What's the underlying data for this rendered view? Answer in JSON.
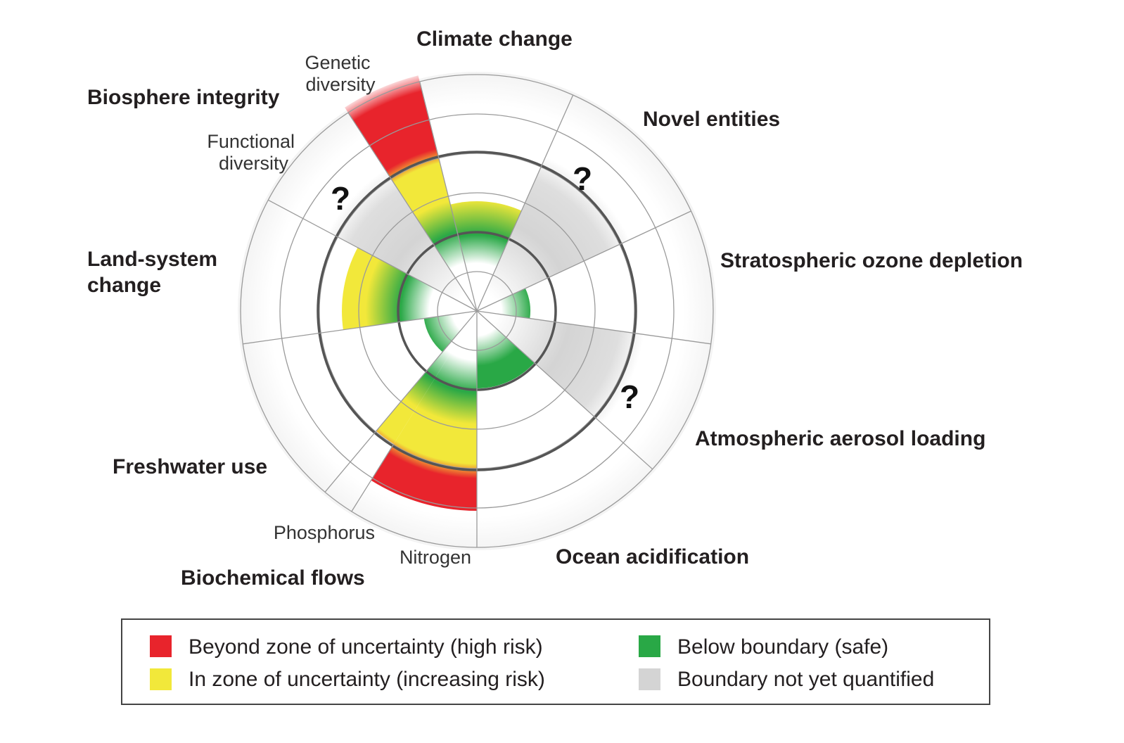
{
  "figure": {
    "boundaries": [
      {
        "label": "Climate change"
      },
      {
        "label": "Novel entities",
        "status_mark": "?"
      },
      {
        "label": "Stratospheric ozone depletion"
      },
      {
        "label": "Atmospheric aerosol loading",
        "status_mark": "?"
      },
      {
        "label": "Ocean acidification"
      },
      {
        "label": "Biochemical flows",
        "sub_labels": [
          "Phosphorus",
          "Nitrogen"
        ]
      },
      {
        "label": "Freshwater use"
      },
      {
        "label": "Land-system change"
      },
      {
        "label": "Biosphere integrity",
        "sub_labels": [
          "Genetic diversity",
          "Functional diversity"
        ],
        "status_mark": "?"
      }
    ]
  },
  "labels": {
    "climate_change": "Climate change",
    "novel_entities": "Novel entities",
    "ozone": "Stratospheric ozone depletion",
    "aerosol": "Atmospheric aerosol loading",
    "ocean": "Ocean acidification",
    "biochemical": "Biochemical flows",
    "phosphorus": "Phosphorus",
    "nitrogen": "Nitrogen",
    "freshwater": "Freshwater use",
    "land_line1": "Land-system",
    "land_line2": "change",
    "biosphere": "Biosphere integrity",
    "genetic_line1": "Genetic",
    "genetic_line2": "diversity",
    "functional_line1": "Functional",
    "functional_line2": "diversity",
    "question_mark": "?"
  },
  "legend": {
    "items": [
      {
        "key": "high",
        "label": "Beyond zone of uncertainty (high risk)",
        "color": "#e8242c"
      },
      {
        "key": "increasing",
        "label": "In zone of uncertainty (increasing risk)",
        "color": "#f2e83a"
      },
      {
        "key": "safe",
        "label": "Below boundary (safe)",
        "color": "#29a846"
      },
      {
        "key": "unknown",
        "label": "Boundary not yet quantified",
        "color": "#d4d4d4"
      }
    ]
  },
  "colors": {
    "red": "#e8242c",
    "yellow": "#f2e83a",
    "green": "#29a846",
    "grey": "#d4d4d4",
    "boundary_ring": "#555555",
    "grid": "#9a9a9a"
  }
}
